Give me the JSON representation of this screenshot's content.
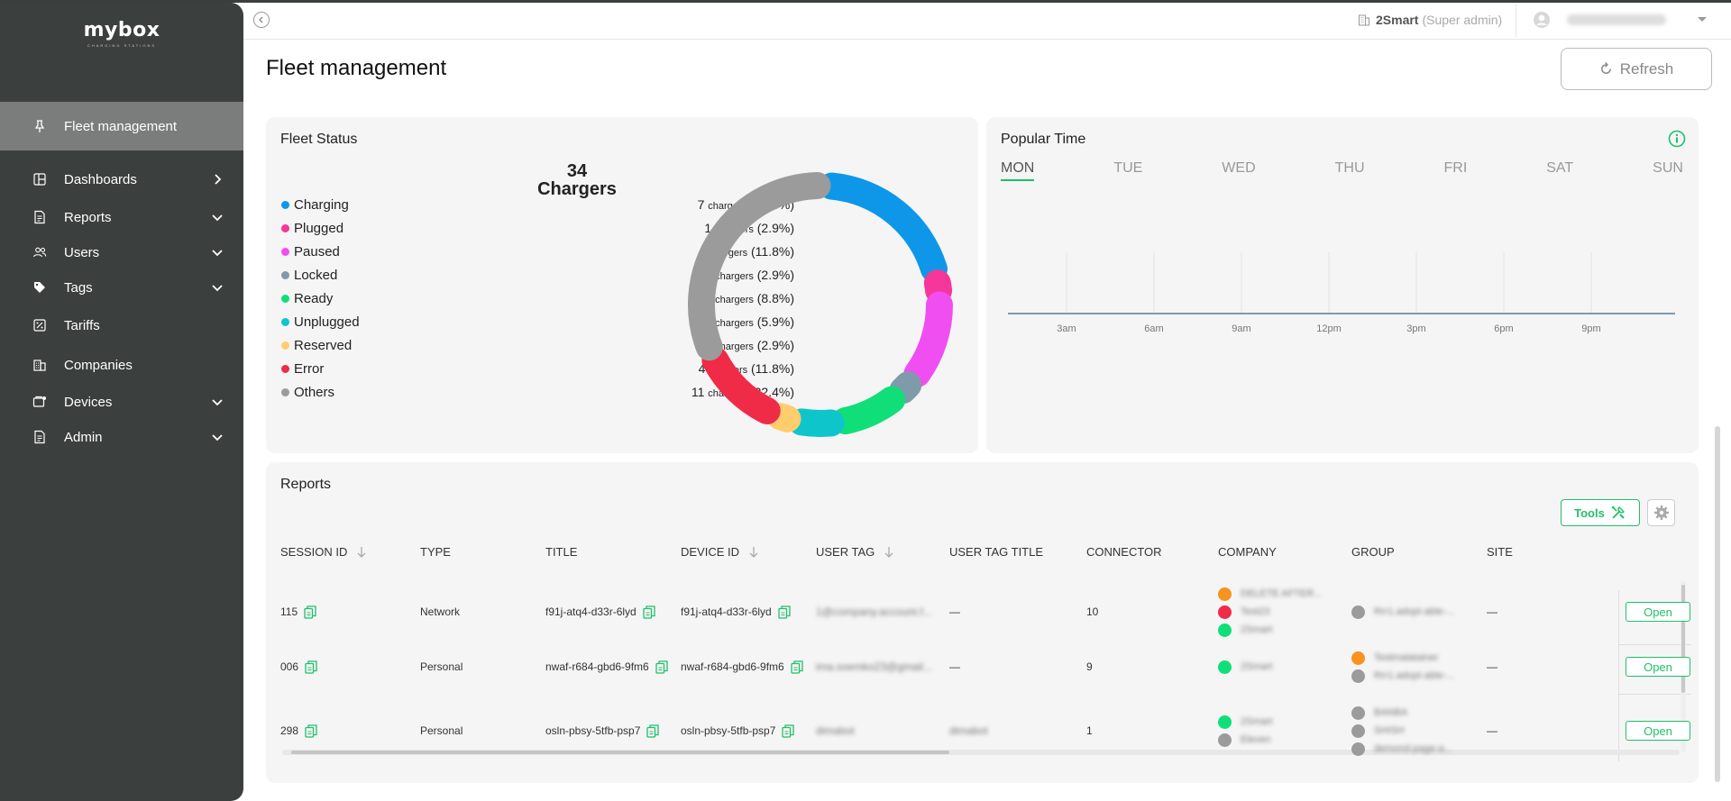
{
  "app": {
    "brand": "mybox",
    "brand_sub": "CHARGING STATIONS"
  },
  "sidebar": {
    "items": [
      {
        "label": "Fleet management",
        "icon": "pin-icon",
        "active": true
      },
      {
        "label": "Dashboards",
        "icon": "dashboard-icon",
        "chevron": "right"
      },
      {
        "label": "Reports",
        "icon": "document-icon",
        "chevron": "down"
      },
      {
        "label": "Users",
        "icon": "users-icon",
        "chevron": "down"
      },
      {
        "label": "Tags",
        "icon": "tag-icon",
        "chevron": "down"
      },
      {
        "label": "Tariffs",
        "icon": "tariff-icon"
      },
      {
        "label": "Companies",
        "icon": "building-icon"
      },
      {
        "label": "Devices",
        "icon": "device-icon",
        "chevron": "down"
      },
      {
        "label": "Admin",
        "icon": "document-icon",
        "chevron": "down"
      }
    ]
  },
  "topbar": {
    "org_name": "2Smart",
    "org_role": "(Super admin)"
  },
  "page": {
    "title": "Fleet management",
    "refresh_label": "Refresh"
  },
  "fleet_status": {
    "title": "Fleet Status",
    "total": "34",
    "total_label": "Chargers",
    "unit": "chargers",
    "items": [
      {
        "label": "Charging",
        "count": "7",
        "pct": "(20.6%)",
        "color": "#0e97e8",
        "value": 7
      },
      {
        "label": "Plugged",
        "count": "1",
        "pct": "(2.9%)",
        "color": "#f5369a",
        "value": 1
      },
      {
        "label": "Paused",
        "count": "4",
        "pct": "(11.8%)",
        "color": "#f04ef0",
        "value": 4
      },
      {
        "label": "Locked",
        "count": "1",
        "pct": "(2.9%)",
        "color": "#7f9aa8",
        "value": 1
      },
      {
        "label": "Ready",
        "count": "3",
        "pct": "(8.8%)",
        "color": "#10df79",
        "value": 3
      },
      {
        "label": "Unplugged",
        "count": "2",
        "pct": "(5.9%)",
        "color": "#0fc5cc",
        "value": 2
      },
      {
        "label": "Reserved",
        "count": "1",
        "pct": "(2.9%)",
        "color": "#ffcd6b",
        "value": 1
      },
      {
        "label": "Error",
        "count": "4",
        "pct": "(11.8%)",
        "color": "#ef2b48",
        "value": 4
      },
      {
        "label": "Others",
        "count": "11",
        "pct": "(32.4%)",
        "color": "#9b9b9b",
        "value": 11
      }
    ]
  },
  "popular_time": {
    "title": "Popular Time",
    "days": [
      "MON",
      "TUE",
      "WED",
      "THU",
      "FRI",
      "SAT",
      "SUN"
    ],
    "selected_day": "MON",
    "time_ticks": [
      "3am",
      "6am",
      "9am",
      "12pm",
      "3pm",
      "6pm",
      "9pm"
    ]
  },
  "reports": {
    "title": "Reports",
    "tools_label": "Tools",
    "columns": [
      "SESSION ID",
      "TYPE",
      "TITLE",
      "DEVICE ID",
      "USER TAG",
      "USER TAG TITLE",
      "CONNECTOR",
      "COMPANY",
      "GROUP",
      "SITE"
    ],
    "open_label": "Open",
    "rows": [
      {
        "session_id": "115",
        "type": "Network",
        "title": "f91j-atq4-d33r-6lyd",
        "device_id": "f91j-atq4-d33r-6lyd",
        "user_tag": "1@company.account.f...",
        "user_tag_title": "—",
        "connector": "10",
        "companies": [
          {
            "name": "DELETE AFTER...",
            "color": "#f7931e"
          },
          {
            "name": "Test23",
            "color": "#ef2b48"
          },
          {
            "name": "2Smart",
            "color": "#10df79"
          }
        ],
        "groups": [
          {
            "name": "Rrr1.adopt-able-...",
            "color": "#9b9b9b"
          }
        ],
        "site": "—"
      },
      {
        "session_id": "006",
        "type": "Personal",
        "title": "nwaf-r684-gbd6-9fm6",
        "device_id": "nwaf-r684-gbd6-9fm6",
        "user_tag": "ima.soemko23@gmail...",
        "user_tag_title": "—",
        "connector": "9",
        "companies": [
          {
            "name": "2Smart",
            "color": "#10df79"
          }
        ],
        "groups": [
          {
            "name": "Testmalatainer",
            "color": "#f7931e"
          },
          {
            "name": "Rrr1.adopt-able-...",
            "color": "#9b9b9b"
          }
        ],
        "site": "—"
      },
      {
        "session_id": "298",
        "type": "Personal",
        "title": "osln-pbsy-5tfb-psp7",
        "device_id": "osln-pbsy-5tfb-psp7",
        "user_tag": "dimabot",
        "user_tag_title": "dimabot",
        "connector": "1",
        "companies": [
          {
            "name": "2Smart",
            "color": "#10df79"
          },
          {
            "name": "Eleven",
            "color": "#9b9b9b"
          }
        ],
        "groups": [
          {
            "name": "BANBA",
            "color": "#9b9b9b"
          },
          {
            "name": "SHISH",
            "color": "#9b9b9b"
          },
          {
            "name": "demond-page-a...",
            "color": "#9b9b9b"
          }
        ],
        "site": "—"
      }
    ]
  }
}
